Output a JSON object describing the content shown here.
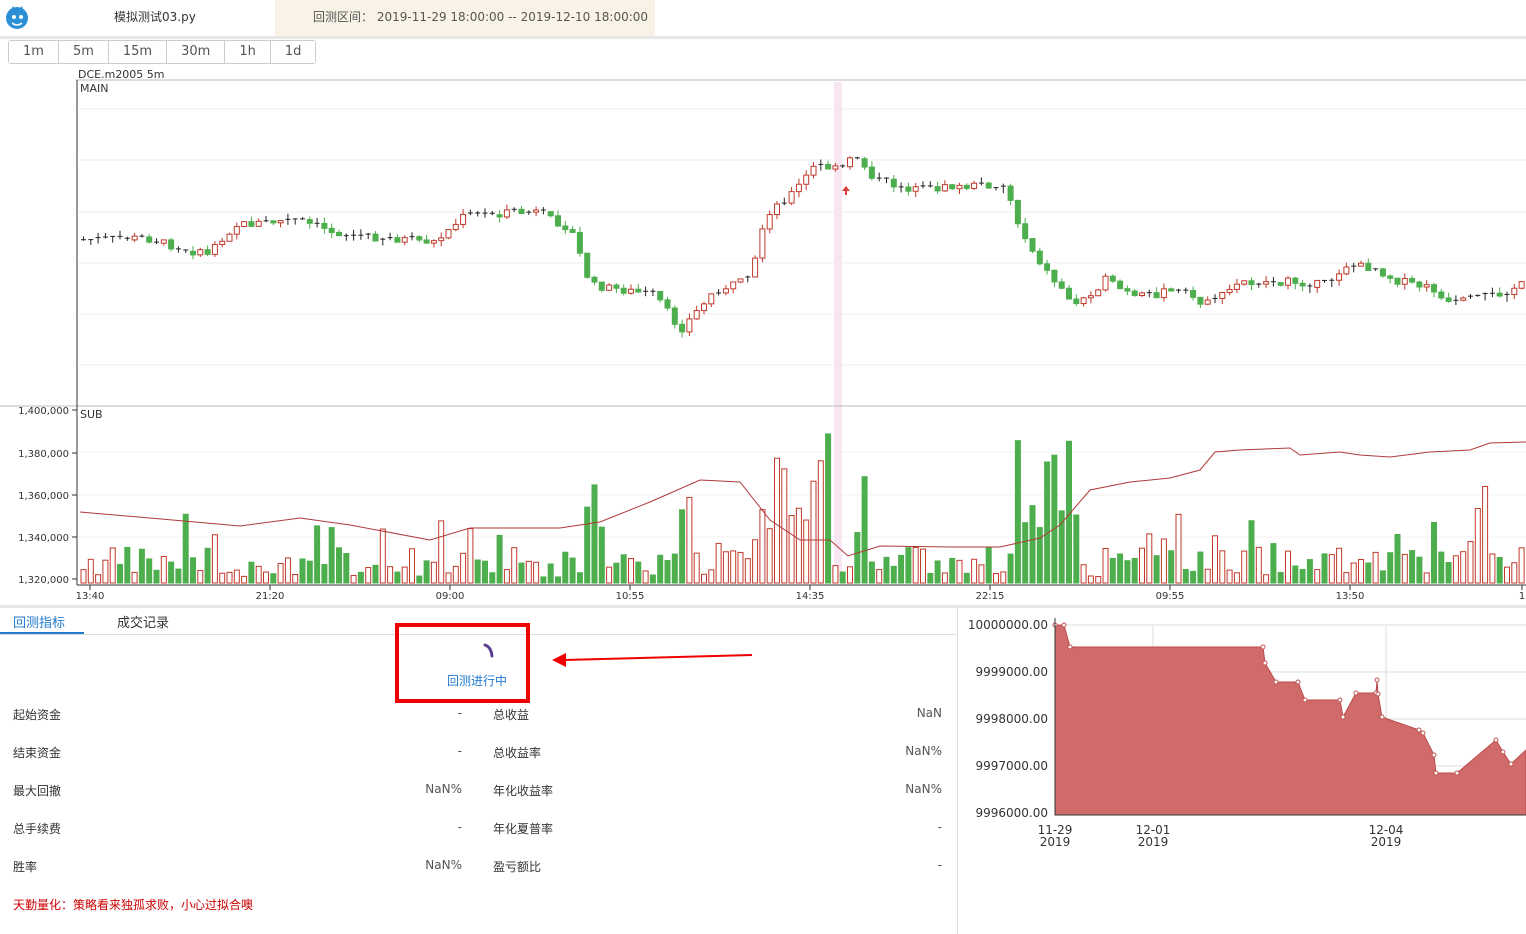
{
  "header": {
    "filename": "模拟测试03.py",
    "range_label": "回测区间：",
    "range_value": "2019-11-29 18:00:00 -- 2019-12-10 18:00:00"
  },
  "periods": [
    "1m",
    "5m",
    "15m",
    "30m",
    "1h",
    "1d"
  ],
  "chart": {
    "symbol": "DCE.m2005 5m",
    "main_label": "MAIN",
    "sub_label": "SUB",
    "y_ticks": [
      "1,400,000",
      "1,380,000",
      "1,360,000",
      "1,340,000",
      "1,320,000"
    ],
    "x_ticks": [
      "13:40",
      "21:20",
      "09:00",
      "10:55",
      "14:35",
      "22:15",
      "09:55",
      "13:50",
      "1"
    ],
    "colors": {
      "up": "#c0392b",
      "down": "#4cae4c",
      "line": "#b03a3a"
    }
  },
  "tabs": [
    "回测指标",
    "成交记录"
  ],
  "status": "回测进行中",
  "metrics": {
    "left": [
      {
        "label": "起始资金",
        "value": "-"
      },
      {
        "label": "结束资金",
        "value": "-"
      },
      {
        "label": "最大回撤",
        "value": "NaN%"
      },
      {
        "label": "总手续费",
        "value": "-"
      },
      {
        "label": "胜率",
        "value": "NaN%"
      }
    ],
    "right": [
      {
        "label": "总收益",
        "value": "NaN"
      },
      {
        "label": "总收益率",
        "value": "NaN%"
      },
      {
        "label": "年化收益率",
        "value": "NaN%"
      },
      {
        "label": "年化夏普率",
        "value": "-"
      },
      {
        "label": "盈亏额比",
        "value": "-"
      }
    ]
  },
  "slogan": "天勤量化：策略看来独孤求败，小心过拟合噢",
  "equity_chart": {
    "type": "area",
    "y_ticks": [
      "10000000.00",
      "9999000.00",
      "9998000.00",
      "9997000.00",
      "9996000.00"
    ],
    "x_ticks": [
      {
        "date": "11-29",
        "year": "2019"
      },
      {
        "date": "12-01",
        "year": "2019"
      },
      {
        "date": "12-04",
        "year": "2019"
      }
    ],
    "color": "#d16b6b"
  }
}
